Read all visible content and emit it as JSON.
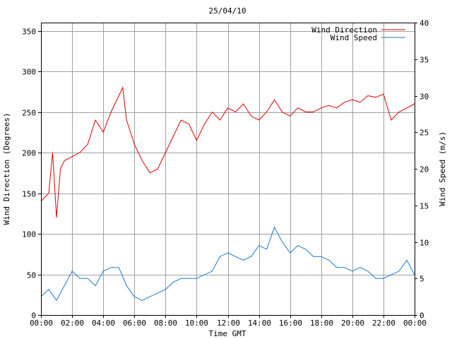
{
  "chart_data": {
    "type": "line",
    "title": "25/04/10",
    "xlabel": "Time GMT",
    "ylabel_left": "Wind Direction (Degrees)",
    "ylabel_right": "Wind Speed (m/s)",
    "x_ticks": [
      "00:00",
      "02:00",
      "04:00",
      "06:00",
      "08:00",
      "10:00",
      "12:00",
      "14:00",
      "16:00",
      "18:00",
      "20:00",
      "22:00",
      "00:00"
    ],
    "xlim_hours": [
      0,
      24
    ],
    "ylim_left": [
      0,
      360
    ],
    "y_ticks_left": [
      0,
      50,
      100,
      150,
      200,
      250,
      300,
      350
    ],
    "ylim_right": [
      0,
      40
    ],
    "y_ticks_right": [
      0,
      5,
      10,
      15,
      20,
      25,
      30,
      35,
      40
    ],
    "grid": true,
    "legend_position": "top-right",
    "series": [
      {
        "name": "Wind Direction",
        "axis": "left",
        "color": "#e00000",
        "x_hours": [
          0.0,
          0.5,
          0.75,
          1.0,
          1.25,
          1.5,
          2.0,
          2.5,
          3.0,
          3.5,
          4.0,
          4.5,
          5.0,
          5.25,
          5.5,
          6.0,
          6.5,
          7.0,
          7.5,
          8.0,
          8.5,
          9.0,
          9.5,
          10.0,
          10.5,
          11.0,
          11.5,
          12.0,
          12.5,
          13.0,
          13.5,
          14.0,
          14.5,
          15.0,
          15.5,
          16.0,
          16.5,
          17.0,
          17.5,
          18.0,
          18.5,
          19.0,
          19.5,
          20.0,
          20.5,
          21.0,
          21.5,
          22.0,
          22.5,
          23.0,
          23.5,
          24.0
        ],
        "values": [
          140,
          150,
          200,
          120,
          180,
          190,
          195,
          200,
          210,
          240,
          225,
          250,
          270,
          280,
          240,
          210,
          190,
          175,
          180,
          200,
          220,
          240,
          235,
          215,
          235,
          250,
          240,
          255,
          250,
          260,
          245,
          240,
          250,
          265,
          250,
          245,
          255,
          250,
          250,
          255,
          258,
          255,
          262,
          265,
          262,
          270,
          268,
          272,
          240,
          250,
          255,
          260
        ]
      },
      {
        "name": "Wind Speed",
        "axis": "right",
        "color": "#1a78d2",
        "x_hours": [
          0.0,
          0.5,
          1.0,
          1.5,
          2.0,
          2.5,
          3.0,
          3.5,
          4.0,
          4.5,
          5.0,
          5.5,
          6.0,
          6.5,
          7.0,
          7.5,
          8.0,
          8.5,
          9.0,
          9.5,
          10.0,
          10.5,
          11.0,
          11.5,
          12.0,
          12.5,
          13.0,
          13.5,
          14.0,
          14.5,
          15.0,
          15.5,
          16.0,
          16.5,
          17.0,
          17.5,
          18.0,
          18.5,
          19.0,
          19.5,
          20.0,
          20.5,
          21.0,
          21.5,
          22.0,
          22.5,
          23.0,
          23.5,
          24.0
        ],
        "values": [
          2.5,
          3.5,
          2.0,
          4.0,
          6.0,
          5.0,
          5.0,
          4.0,
          6.0,
          6.5,
          6.5,
          4.0,
          2.5,
          2.0,
          2.5,
          3.0,
          3.5,
          4.5,
          5.0,
          5.0,
          5.0,
          5.5,
          6.0,
          8.0,
          8.5,
          8.0,
          7.5,
          8.0,
          9.5,
          9.0,
          12.0,
          10.0,
          8.5,
          9.5,
          9.0,
          8.0,
          8.0,
          7.5,
          6.5,
          6.5,
          6.0,
          6.5,
          6.0,
          5.0,
          5.0,
          5.5,
          6.0,
          7.5,
          5.5
        ]
      }
    ]
  }
}
